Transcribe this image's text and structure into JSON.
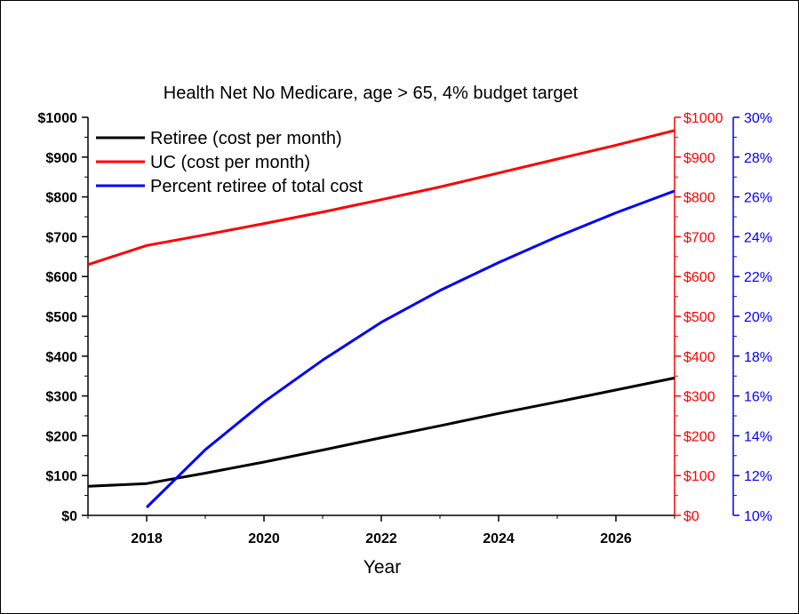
{
  "chart_data": {
    "type": "line",
    "title": "Health Net No Medicare, age > 65,  4% budget target",
    "xlabel": "Year",
    "ylabel": "",
    "xlim": [
      2017,
      2027
    ],
    "x_ticks": [
      2018,
      2020,
      2022,
      2024,
      2026
    ],
    "x_tick_labels": [
      "2018",
      "2020",
      "2022",
      "2024",
      "2026"
    ],
    "ylim_left": [
      0,
      1000
    ],
    "y_ticks_left": [
      0,
      100,
      200,
      300,
      400,
      500,
      600,
      700,
      800,
      900,
      1000
    ],
    "y_tick_labels_left": [
      "$0",
      "$100",
      "$200",
      "$300",
      "$400",
      "$500",
      "$600",
      "$700",
      "$800",
      "$900",
      "$1000"
    ],
    "ylim_right_red": [
      0,
      1000
    ],
    "y_tick_labels_right_red": [
      "$0",
      "$100",
      "$200",
      "$300",
      "$400",
      "$500",
      "$600",
      "$700",
      "$800",
      "$900",
      "$1000"
    ],
    "ylim_right_blue": [
      10,
      30
    ],
    "y_ticks_right_blue": [
      10,
      12,
      14,
      16,
      18,
      20,
      22,
      24,
      26,
      28,
      30
    ],
    "y_tick_labels_right_blue": [
      "10%",
      "12%",
      "14%",
      "16%",
      "18%",
      "20%",
      "22%",
      "24%",
      "26%",
      "28%",
      "30%"
    ],
    "legend_position": "top-left",
    "colors": {
      "left_axis": "#000000",
      "right_red_axis": "#ff0000",
      "right_blue_axis": "#0000ff"
    },
    "series": [
      {
        "name": "Retiree (cost per month)",
        "color": "#000000",
        "axis": "left",
        "x": [
          2017,
          2018,
          2019,
          2020,
          2021,
          2022,
          2023,
          2024,
          2025,
          2026,
          2027
        ],
        "values": [
          73,
          80,
          106,
          134,
          164,
          195,
          225,
          256,
          285,
          315,
          345
        ]
      },
      {
        "name": "UC (cost per month)",
        "color": "#ff0000",
        "axis": "right_red",
        "x": [
          2017,
          2018,
          2019,
          2020,
          2021,
          2022,
          2023,
          2024,
          2025,
          2026,
          2027
        ],
        "values": [
          630,
          678,
          705,
          733,
          762,
          793,
          825,
          860,
          895,
          930,
          967
        ]
      },
      {
        "name": "Percent retiree of total cost",
        "color": "#0000ff",
        "axis": "right_blue",
        "x": [
          2018,
          2019,
          2020,
          2021,
          2022,
          2023,
          2024,
          2025,
          2026,
          2027
        ],
        "values": [
          10.4,
          13.3,
          15.7,
          17.8,
          19.7,
          21.3,
          22.7,
          24.0,
          25.2,
          26.3
        ]
      }
    ]
  }
}
